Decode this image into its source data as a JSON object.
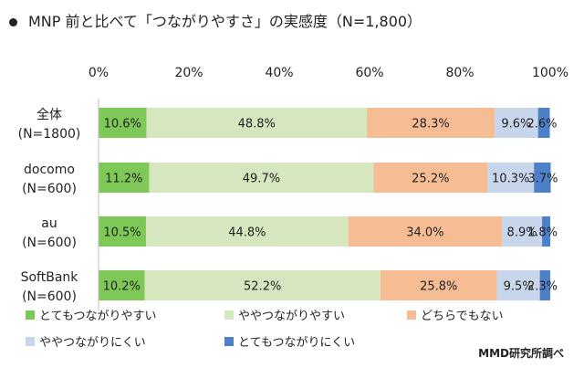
{
  "chart_data": {
    "type": "bar",
    "orientation": "horizontal",
    "stacked": true,
    "percent_stacked": true,
    "title": "MNP 前と比べて「つながりやすさ」の実感度（N=1,800）",
    "xlim": [
      0,
      100
    ],
    "x_ticks": [
      "0%",
      "20%",
      "40%",
      "60%",
      "80%",
      "100%"
    ],
    "categories": [
      {
        "line1": "全体",
        "line2": "(N=1800)"
      },
      {
        "line1": "docomo",
        "line2": "(N=600)"
      },
      {
        "line1": "au",
        "line2": "(N=600)"
      },
      {
        "line1": "SoftBank",
        "line2": "(N=600)"
      }
    ],
    "series": [
      {
        "name": "とてもつながりやすい",
        "color": "#7DC856",
        "values": [
          10.6,
          11.2,
          10.5,
          10.2
        ]
      },
      {
        "name": "ややつながりやすい",
        "color": "#D6E7BF",
        "values": [
          48.8,
          49.7,
          44.8,
          52.2
        ]
      },
      {
        "name": "どちらでもない",
        "color": "#F6BD94",
        "values": [
          28.3,
          25.2,
          34.0,
          25.8
        ]
      },
      {
        "name": "ややつながりにくい",
        "color": "#C8D6EC",
        "values": [
          9.6,
          10.3,
          8.9,
          9.5
        ]
      },
      {
        "name": "とてもつながりにくい",
        "color": "#4C80C8",
        "values": [
          2.6,
          3.7,
          1.8,
          2.3
        ]
      }
    ],
    "legend_position": "bottom",
    "credit": "MMD研究所調べ"
  }
}
